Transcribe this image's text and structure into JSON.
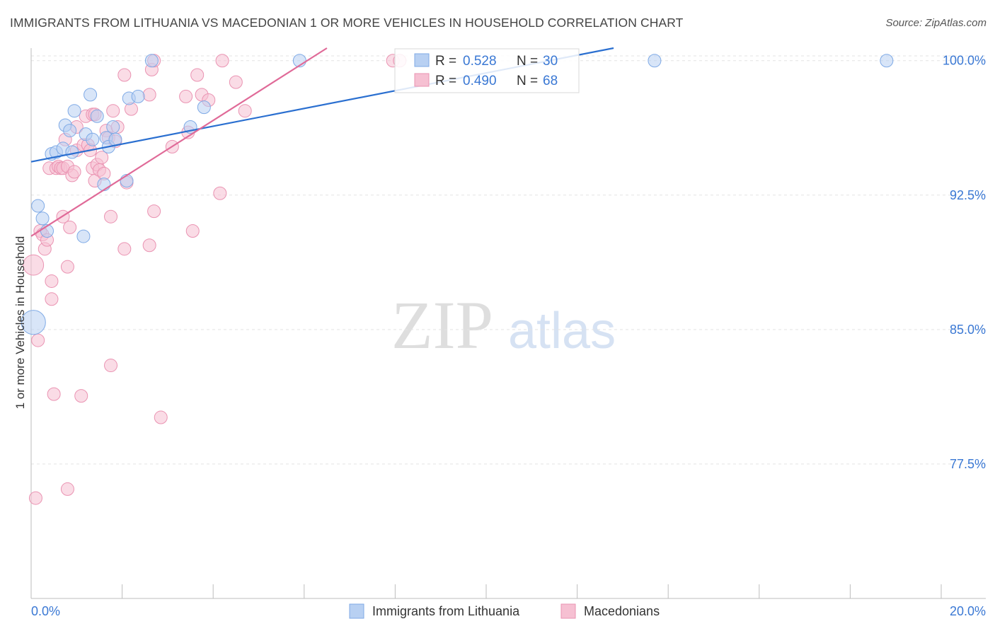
{
  "title": "IMMIGRANTS FROM LITHUANIA VS MACEDONIAN 1 OR MORE VEHICLES IN HOUSEHOLD CORRELATION CHART",
  "source": "Source: ZipAtlas.com",
  "watermark": {
    "zip": "ZIP",
    "atlas": "atlas"
  },
  "colors": {
    "blue_fill": "#b8d0f2",
    "blue_stroke": "#7faae6",
    "blue_line": "#2a6fd0",
    "pink_fill": "#f6c0d2",
    "pink_stroke": "#ea93b2",
    "pink_line": "#e06a98",
    "axis_text": "#3a78d4",
    "grid": "#e3e3e3"
  },
  "legend_top": {
    "rows": [
      {
        "r_label": "R =",
        "r_value": "0.528",
        "n_label": "N =",
        "n_value": "30"
      },
      {
        "r_label": "R =",
        "r_value": "0.490",
        "n_label": "N =",
        "n_value": "68"
      }
    ]
  },
  "chart_data": {
    "type": "scatter",
    "title": "IMMIGRANTS FROM LITHUANIA VS MACEDONIAN 1 OR MORE VEHICLES IN HOUSEHOLD CORRELATION CHART",
    "xlabel": "",
    "ylabel": "1 or more Vehicles in Household",
    "xlim": [
      0,
      20
    ],
    "ylim": [
      70.0,
      100.7
    ],
    "x_ticks": [
      0,
      20
    ],
    "x_tick_labels": [
      "0.0%",
      "20.0%"
    ],
    "y_ticks": [
      77.5,
      85.0,
      92.5,
      100.0
    ],
    "y_tick_labels": [
      "77.5%",
      "85.0%",
      "92.5%",
      "100.0%"
    ],
    "grid": "horizontal dashed",
    "legend_position": "bottom-center",
    "series": [
      {
        "name": "Immigrants from Lithuania",
        "color": "#7faae6",
        "R": 0.528,
        "N": 30,
        "trendline": {
          "x": [
            0,
            12.8
          ],
          "y": [
            94.36,
            100.7
          ]
        },
        "points": [
          {
            "x": 0.05,
            "y": 85.4,
            "size": 1.9
          },
          {
            "x": 0.15,
            "y": 91.9
          },
          {
            "x": 0.25,
            "y": 91.2
          },
          {
            "x": 0.35,
            "y": 90.5
          },
          {
            "x": 0.45,
            "y": 94.8
          },
          {
            "x": 0.55,
            "y": 94.9
          },
          {
            "x": 0.7,
            "y": 95.1
          },
          {
            "x": 0.75,
            "y": 96.4
          },
          {
            "x": 0.85,
            "y": 96.1
          },
          {
            "x": 0.9,
            "y": 94.9
          },
          {
            "x": 0.95,
            "y": 97.2
          },
          {
            "x": 1.15,
            "y": 90.2
          },
          {
            "x": 1.2,
            "y": 95.9
          },
          {
            "x": 1.3,
            "y": 98.1
          },
          {
            "x": 1.35,
            "y": 95.6
          },
          {
            "x": 1.45,
            "y": 96.9
          },
          {
            "x": 1.6,
            "y": 93.1
          },
          {
            "x": 1.65,
            "y": 95.7
          },
          {
            "x": 1.7,
            "y": 95.2
          },
          {
            "x": 1.8,
            "y": 96.3
          },
          {
            "x": 1.85,
            "y": 95.6
          },
          {
            "x": 2.1,
            "y": 93.3
          },
          {
            "x": 2.15,
            "y": 97.9
          },
          {
            "x": 2.35,
            "y": 98.0
          },
          {
            "x": 2.65,
            "y": 100.0
          },
          {
            "x": 3.5,
            "y": 96.3
          },
          {
            "x": 3.8,
            "y": 97.4
          },
          {
            "x": 5.9,
            "y": 100.0
          },
          {
            "x": 13.7,
            "y": 100.0
          },
          {
            "x": 18.8,
            "y": 100.0
          }
        ]
      },
      {
        "name": "Macedonians",
        "color": "#ea93b2",
        "R": 0.49,
        "N": 68,
        "trendline": {
          "x": [
            0,
            6.5
          ],
          "y": [
            90.21,
            100.7
          ]
        },
        "points": [
          {
            "x": 0.05,
            "y": 88.6,
            "size": 1.6
          },
          {
            "x": 0.1,
            "y": 75.6
          },
          {
            "x": 0.15,
            "y": 84.4
          },
          {
            "x": 0.2,
            "y": 90.5
          },
          {
            "x": 0.25,
            "y": 90.3
          },
          {
            "x": 0.3,
            "y": 89.5
          },
          {
            "x": 0.35,
            "y": 90.0
          },
          {
            "x": 0.4,
            "y": 94.0
          },
          {
            "x": 0.45,
            "y": 87.7
          },
          {
            "x": 0.45,
            "y": 86.7
          },
          {
            "x": 0.5,
            "y": 81.4
          },
          {
            "x": 0.55,
            "y": 94.0
          },
          {
            "x": 0.6,
            "y": 94.1
          },
          {
            "x": 0.65,
            "y": 94.0
          },
          {
            "x": 0.7,
            "y": 94.0
          },
          {
            "x": 0.7,
            "y": 91.3
          },
          {
            "x": 0.75,
            "y": 95.6
          },
          {
            "x": 0.8,
            "y": 94.1
          },
          {
            "x": 0.8,
            "y": 88.5
          },
          {
            "x": 0.8,
            "y": 76.1
          },
          {
            "x": 0.85,
            "y": 90.7
          },
          {
            "x": 0.9,
            "y": 93.6
          },
          {
            "x": 0.95,
            "y": 93.8
          },
          {
            "x": 1.0,
            "y": 96.3
          },
          {
            "x": 1.0,
            "y": 95.0
          },
          {
            "x": 1.1,
            "y": 81.3
          },
          {
            "x": 1.15,
            "y": 95.3
          },
          {
            "x": 1.2,
            "y": 96.9
          },
          {
            "x": 1.25,
            "y": 95.3
          },
          {
            "x": 1.3,
            "y": 95.0
          },
          {
            "x": 1.35,
            "y": 97.0
          },
          {
            "x": 1.35,
            "y": 94.0
          },
          {
            "x": 1.4,
            "y": 97.0
          },
          {
            "x": 1.4,
            "y": 93.3
          },
          {
            "x": 1.45,
            "y": 94.2
          },
          {
            "x": 1.5,
            "y": 93.9
          },
          {
            "x": 1.55,
            "y": 94.6
          },
          {
            "x": 1.6,
            "y": 93.7
          },
          {
            "x": 1.65,
            "y": 96.1
          },
          {
            "x": 1.7,
            "y": 95.7
          },
          {
            "x": 1.75,
            "y": 91.3
          },
          {
            "x": 1.75,
            "y": 83.0
          },
          {
            "x": 1.8,
            "y": 97.2
          },
          {
            "x": 1.85,
            "y": 95.5
          },
          {
            "x": 1.9,
            "y": 96.3
          },
          {
            "x": 2.05,
            "y": 89.5
          },
          {
            "x": 2.05,
            "y": 99.2
          },
          {
            "x": 2.1,
            "y": 93.2
          },
          {
            "x": 2.2,
            "y": 97.3
          },
          {
            "x": 2.6,
            "y": 98.1
          },
          {
            "x": 2.6,
            "y": 89.7
          },
          {
            "x": 2.65,
            "y": 99.5
          },
          {
            "x": 2.7,
            "y": 100.0
          },
          {
            "x": 2.7,
            "y": 91.6
          },
          {
            "x": 2.85,
            "y": 80.1
          },
          {
            "x": 3.1,
            "y": 95.2
          },
          {
            "x": 3.4,
            "y": 98.0
          },
          {
            "x": 3.45,
            "y": 96.0
          },
          {
            "x": 3.55,
            "y": 90.5
          },
          {
            "x": 3.65,
            "y": 99.2
          },
          {
            "x": 3.75,
            "y": 98.1
          },
          {
            "x": 3.9,
            "y": 97.8
          },
          {
            "x": 4.15,
            "y": 92.6
          },
          {
            "x": 4.2,
            "y": 100.0
          },
          {
            "x": 4.5,
            "y": 98.8
          },
          {
            "x": 4.7,
            "y": 97.2
          },
          {
            "x": 7.95,
            "y": 100.0
          },
          {
            "x": 8.1,
            "y": 100.0
          }
        ]
      }
    ]
  }
}
